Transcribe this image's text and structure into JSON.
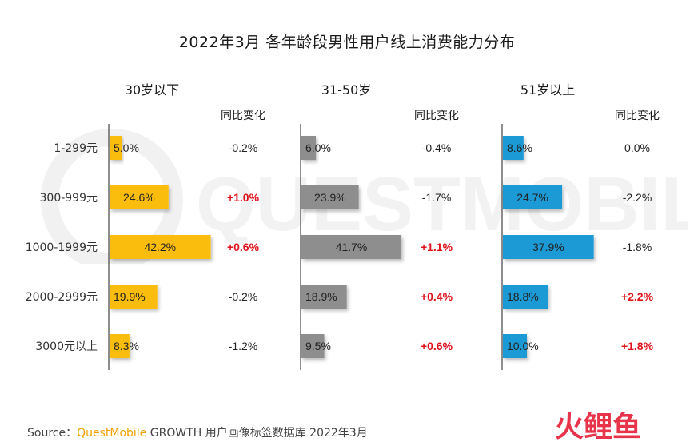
{
  "title": "2022年3月 各年龄段男性用户线上消费能力分布",
  "source": {
    "prefix": "Source：",
    "brand": "QuestMobile",
    "rest": " GROWTH 用户画像标签数据库 2022年3月"
  },
  "watermark_text": "QUESTMOBILE",
  "logo_text": "火鲤鱼",
  "colors": {
    "yellow": "#fbbd10",
    "gray": "#8e8e8e",
    "blue": "#1c9ad6",
    "red_text": "#e0121b",
    "black_text": "#222222"
  },
  "chart_data": {
    "type": "bar",
    "orientation": "horizontal",
    "categories": [
      "1-299元",
      "300-999元",
      "1000-1999元",
      "2000-2999元",
      "3000元以上"
    ],
    "change_header": "同比变化",
    "panels": [
      {
        "name": "30岁以下",
        "color": "yellow",
        "values": [
          5.0,
          24.6,
          42.2,
          19.9,
          8.3
        ],
        "labels": [
          "5.0%",
          "24.6%",
          "42.2%",
          "19.9%",
          "8.3%"
        ],
        "changes": [
          "-0.2%",
          "+1.0%",
          "+0.6%",
          "-0.2%",
          "-1.2%"
        ]
      },
      {
        "name": "31-50岁",
        "color": "gray",
        "values": [
          6.0,
          23.9,
          41.7,
          18.9,
          9.5
        ],
        "labels": [
          "6.0%",
          "23.9%",
          "41.7%",
          "18.9%",
          "9.5%"
        ],
        "changes": [
          "-0.4%",
          "-1.7%",
          "+1.1%",
          "+0.4%",
          "+0.6%"
        ]
      },
      {
        "name": "51岁以上",
        "color": "blue",
        "values": [
          8.6,
          24.7,
          37.9,
          18.8,
          10.0
        ],
        "labels": [
          "8.6%",
          "24.7%",
          "37.9%",
          "18.8%",
          "10.0%"
        ],
        "changes": [
          "0.0%",
          "-2.2%",
          "-1.8%",
          "+2.2%",
          "+1.8%"
        ]
      }
    ]
  }
}
